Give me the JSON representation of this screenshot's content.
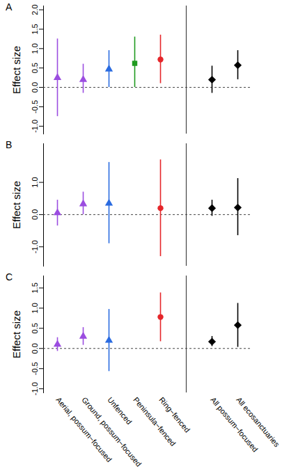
{
  "chart_data": [
    {
      "type": "errorbar",
      "title": "A",
      "y_label": "Effect size",
      "categories": [
        "Aerial, possum−focused",
        "Ground, possum−focused",
        "Unfenced",
        "Peninsula−fenced",
        "Ring−fenced",
        null,
        "All possum−focused",
        "All ecosanctuaries"
      ],
      "values": [
        0.25,
        0.2,
        0.47,
        0.62,
        0.72,
        null,
        0.2,
        0.57
      ],
      "ci_low": [
        -0.75,
        -0.15,
        0.0,
        0.0,
        0.1,
        null,
        -0.15,
        0.2
      ],
      "ci_high": [
        1.25,
        0.6,
        0.95,
        1.3,
        1.35,
        null,
        0.55,
        0.95
      ],
      "colors": [
        "#9b4de0",
        "#9b4de0",
        "#2a6be0",
        "#1f9a1f",
        "#e5262a",
        null,
        "#000000",
        "#000000"
      ],
      "markers": [
        "triangle",
        "triangle",
        "triangle",
        "square",
        "circle",
        null,
        "diamond",
        "diamond"
      ],
      "ylim": [
        -1.2,
        2.1
      ],
      "yticks": [
        {
          "value": -1,
          "label": "-1.0"
        },
        {
          "value": -0.5,
          "label": "-0.5"
        },
        {
          "value": 0,
          "label": "0.0"
        },
        0.5,
        {
          "value": 1,
          "label": "1.0"
        },
        1.5,
        {
          "value": 2,
          "label": "2.0"
        }
      ],
      "reference_line": 0,
      "tick_labels": "y"
    },
    {
      "type": "errorbar",
      "title": "B",
      "y_label": "Effect size",
      "categories": [
        "Aerial, possum−focused",
        "Ground, possum−focused",
        "Unfenced",
        "Peninsula−fenced",
        "Ring−fenced",
        null,
        "All possum−focused",
        "All ecosanctuaries"
      ],
      "values": [
        0.05,
        0.33,
        0.35,
        null,
        0.2,
        null,
        0.2,
        0.22
      ],
      "ci_low": [
        -0.35,
        0.0,
        -0.9,
        null,
        -1.3,
        null,
        -0.05,
        -0.65
      ],
      "ci_high": [
        0.45,
        0.7,
        1.62,
        null,
        1.7,
        null,
        0.45,
        1.12
      ],
      "colors": [
        "#9b4de0",
        "#9b4de0",
        "#2a6be0",
        null,
        "#e5262a",
        null,
        "#000000",
        "#000000"
      ],
      "markers": [
        "triangle",
        "triangle",
        "triangle",
        null,
        "circle",
        null,
        "diamond",
        "diamond"
      ],
      "ylim": [
        -1.6,
        2.2
      ],
      "yticks": [
        {
          "value": -1,
          "label": "-1.0"
        },
        {
          "value": 0,
          "label": "0.0"
        },
        {
          "value": 1,
          "label": "1.0"
        }
      ],
      "reference_line": 0,
      "tick_labels": "y"
    },
    {
      "type": "errorbar",
      "title": "C",
      "y_label": "Effect size",
      "categories": [
        "Aerial, possum−focused",
        "Ground, possum−focused",
        "Unfenced",
        "Peninsula−fenced",
        "Ring−fenced",
        null,
        "All possum−focused",
        "All ecosanctuaries"
      ],
      "values": [
        0.1,
        0.3,
        0.2,
        null,
        0.78,
        null,
        0.17,
        0.58
      ],
      "ci_low": [
        -0.07,
        0.08,
        -0.57,
        null,
        0.17,
        null,
        0.05,
        0.03
      ],
      "ci_high": [
        0.27,
        0.52,
        0.97,
        null,
        1.38,
        null,
        0.3,
        1.12
      ],
      "colors": [
        "#9b4de0",
        "#9b4de0",
        "#2a6be0",
        null,
        "#e5262a",
        null,
        "#000000",
        "#000000"
      ],
      "markers": [
        "triangle",
        "triangle",
        "triangle",
        null,
        "circle",
        null,
        "diamond",
        "diamond"
      ],
      "ylim": [
        -1.1,
        1.8
      ],
      "yticks": [
        {
          "value": -1,
          "label": "-1.0"
        },
        {
          "value": -0.5,
          "label": "-0.5"
        },
        {
          "value": 0,
          "label": "0.0"
        },
        0.5,
        {
          "value": 1,
          "label": "1.0"
        },
        1.5
      ],
      "reference_line": 0
    }
  ]
}
